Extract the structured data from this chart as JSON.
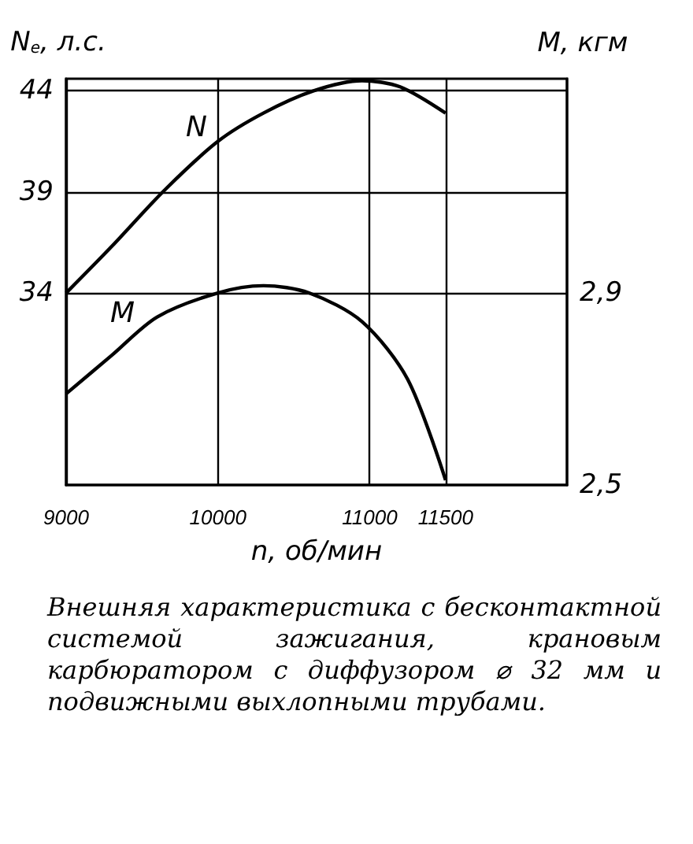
{
  "chart_data": {
    "type": "line",
    "xlabel": "n, об/мин",
    "ylabel": "N$_{e}$, л.с.",
    "y2label": "M, кгм",
    "xlim": [
      9000,
      12300
    ],
    "xticks": [
      9000,
      10000,
      11000,
      11500
    ],
    "ylim": [
      24.5,
      44.6
    ],
    "yticks": [
      34,
      39,
      44
    ],
    "y2lim": [
      2.5,
      3.346
    ],
    "y2ticks": [
      {
        "value": 2.5,
        "label": "2,5"
      },
      {
        "value": 2.9,
        "label": "2,9"
      }
    ],
    "grid": true,
    "marker": "none",
    "line_style": "solid",
    "series": [
      {
        "color": "#000000",
        "x": [
          9000,
          9300,
          9650,
          10000,
          10300,
          10630,
          10950,
          11200,
          11500
        ],
        "values": [
          34,
          36.3,
          39.1,
          41.5,
          42.9,
          44,
          44.5,
          44.2,
          42.9
        ]
      },
      {
        "color": "#000000",
        "axis": "y2",
        "x": [
          9000,
          9300,
          9600,
          10000,
          10300,
          10600,
          10950,
          11250,
          11500
        ],
        "values": [
          2.69,
          2.77,
          2.85,
          2.9,
          2.915,
          2.9,
          2.84,
          2.72,
          2.51
        ]
      }
    ],
    "annotations": [
      "N",
      "M",
      "Внешняя характеристика с бесконтактной системой зажигания, крановым карбюратором с диффузором ⌀ 32 мм и подвижными выхлопными трубами."
    ]
  }
}
